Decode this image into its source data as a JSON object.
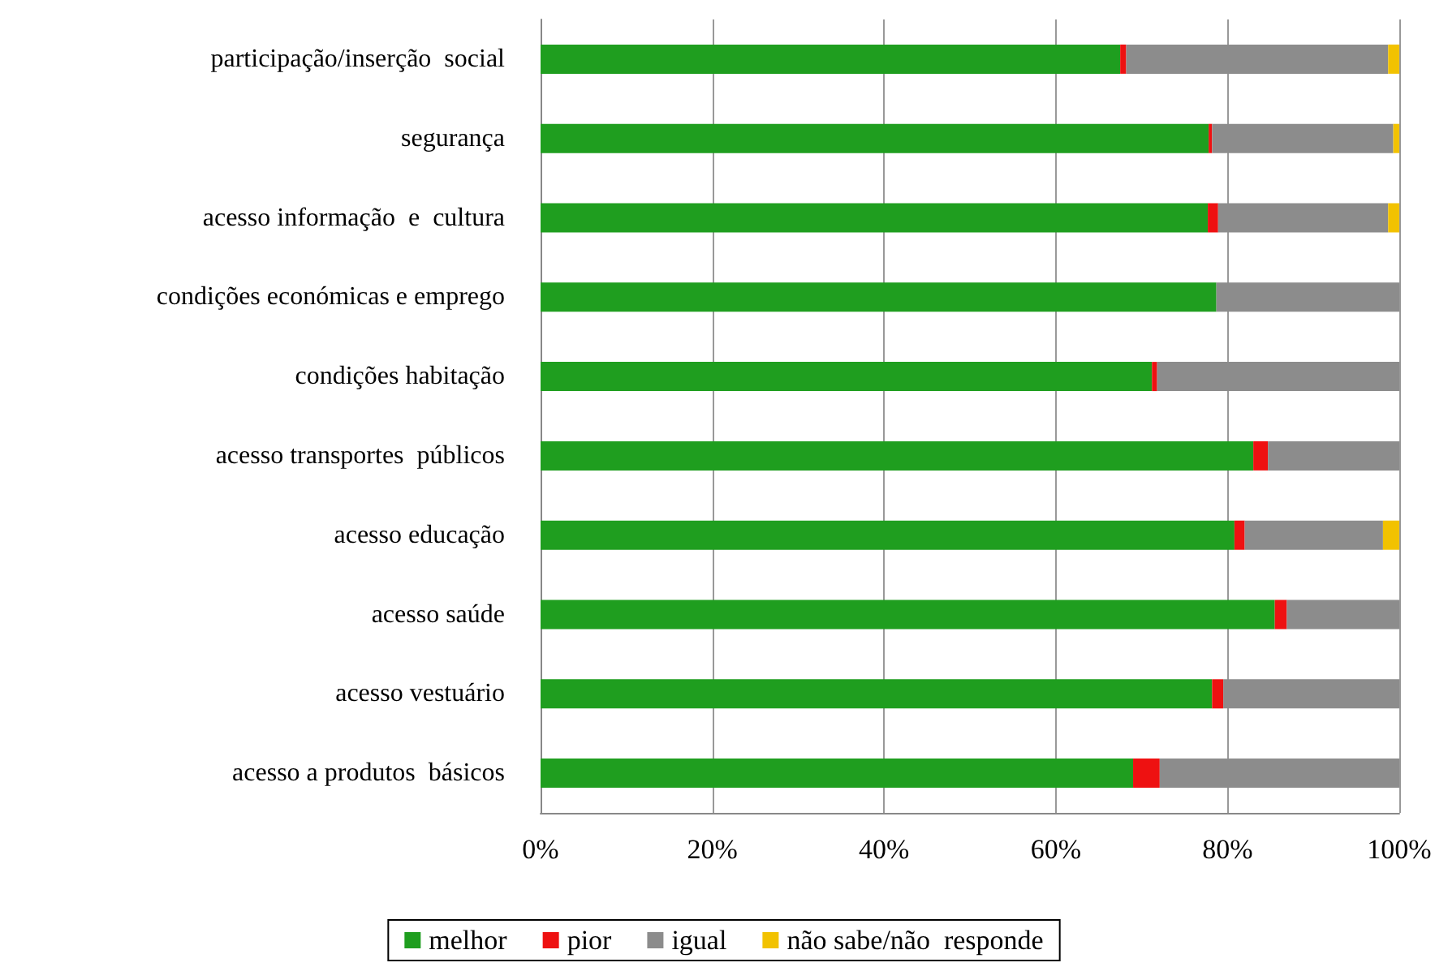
{
  "chart_data": {
    "type": "bar",
    "orientation": "horizontal",
    "stacked": true,
    "categories": [
      "participação/inserção  social",
      "segurança",
      "acesso informação  e  cultura",
      "condições económicas e emprego",
      "condições habitação",
      "acesso transportes  públicos",
      "acesso educação",
      "acesso saúde",
      "acesso vestuário",
      "acesso a produtos  básicos"
    ],
    "series": [
      {
        "name": "melhor",
        "color": "#1f9e1f",
        "values": [
          67.5,
          77.8,
          77.7,
          78.7,
          71.2,
          83.0,
          80.8,
          85.5,
          78.2,
          69.0
        ]
      },
      {
        "name": "pior",
        "color": "#ee1111",
        "values": [
          0.7,
          0.4,
          1.2,
          0,
          0.6,
          1.7,
          1.2,
          1.4,
          1.3,
          3.1
        ]
      },
      {
        "name": "igual",
        "color": "#8c8c8c",
        "values": [
          30.5,
          21.1,
          19.8,
          21.3,
          28.2,
          15.3,
          16.1,
          13.1,
          20.5,
          27.9
        ]
      },
      {
        "name": "não sabe/não  responde",
        "color": "#f2c200",
        "values": [
          1.3,
          0.7,
          1.3,
          0,
          0,
          0,
          1.9,
          0,
          0,
          0
        ]
      }
    ],
    "xlim": [
      0,
      100
    ],
    "xticks": [
      {
        "value": 0,
        "label": "0%"
      },
      {
        "value": 20,
        "label": "20%"
      },
      {
        "value": 40,
        "label": "40%"
      },
      {
        "value": 60,
        "label": "60%"
      },
      {
        "value": 80,
        "label": "80%"
      },
      {
        "value": 100,
        "label": "100%"
      }
    ],
    "grid": "x",
    "legend": "bottom"
  }
}
